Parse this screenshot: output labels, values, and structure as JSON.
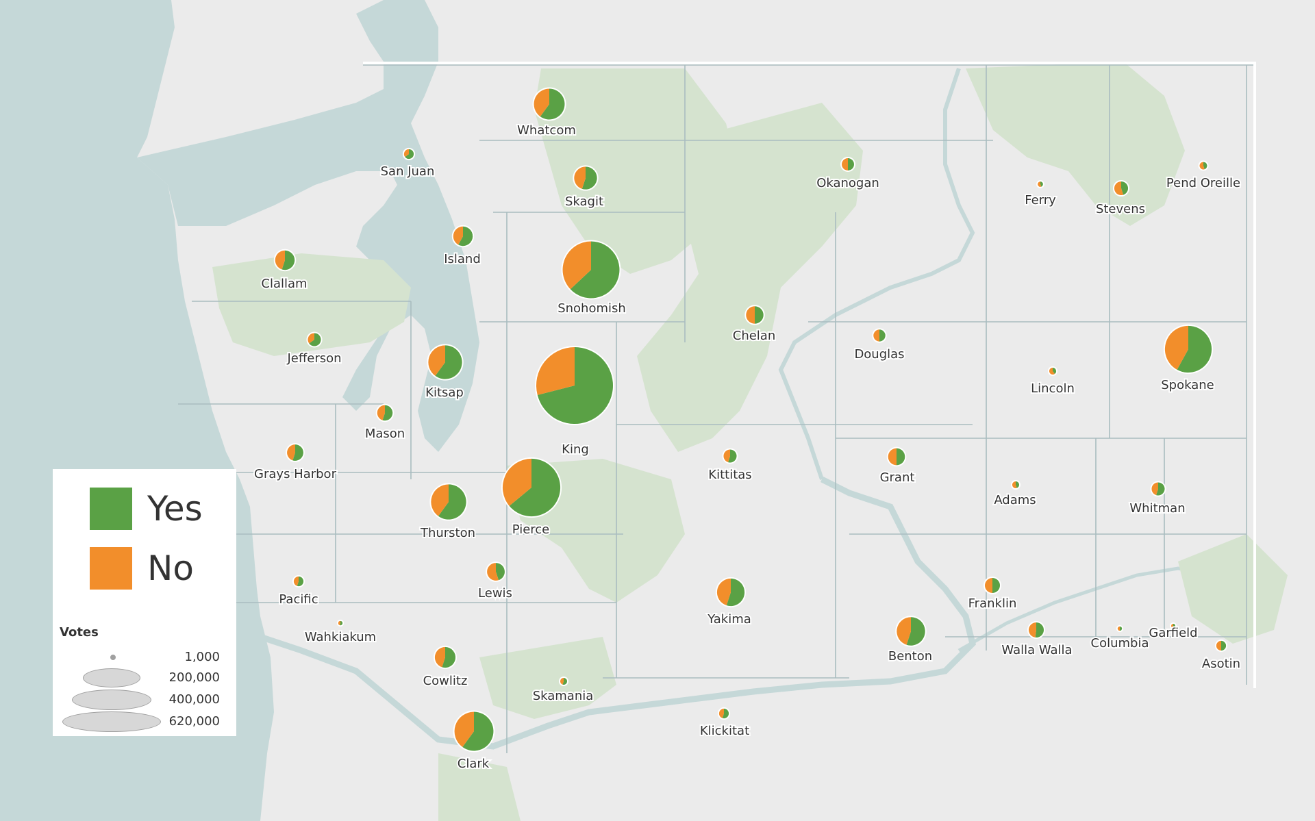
{
  "legend": {
    "series": [
      {
        "name": "Yes",
        "color": "#5aa145"
      },
      {
        "name": "No",
        "color": "#f28e2b"
      }
    ],
    "size_title": "Votes",
    "size_scale": [
      "1,000",
      "200,000",
      "400,000",
      "620,000"
    ]
  },
  "colors": {
    "yes": "#5aa145",
    "no": "#f28e2b",
    "water": "#c5d8d8",
    "land": "#ebebeb",
    "park": "#d5e3cf"
  },
  "chart_data": {
    "type": "map-pie",
    "size_measure": "Votes",
    "series": [
      "Yes",
      "No"
    ],
    "counties": [
      {
        "name": "Whatcom",
        "votes": 100000,
        "yes_share": 0.6
      },
      {
        "name": "San Juan",
        "votes": 10000,
        "yes_share": 0.65
      },
      {
        "name": "Skagit",
        "votes": 55000,
        "yes_share": 0.55
      },
      {
        "name": "Okanogan",
        "votes": 16000,
        "yes_share": 0.5
      },
      {
        "name": "Ferry",
        "votes": 3000,
        "yes_share": 0.45
      },
      {
        "name": "Stevens",
        "votes": 20000,
        "yes_share": 0.45
      },
      {
        "name": "Pend Oreille",
        "votes": 6000,
        "yes_share": 0.45
      },
      {
        "name": "Island",
        "votes": 40000,
        "yes_share": 0.58
      },
      {
        "name": "Clallam",
        "votes": 40000,
        "yes_share": 0.55
      },
      {
        "name": "Snohomish",
        "votes": 340000,
        "yes_share": 0.63
      },
      {
        "name": "Chelan",
        "votes": 32000,
        "yes_share": 0.5
      },
      {
        "name": "Jefferson",
        "votes": 18000,
        "yes_share": 0.65
      },
      {
        "name": "Douglas",
        "votes": 15000,
        "yes_share": 0.5
      },
      {
        "name": "Kitsap",
        "votes": 120000,
        "yes_share": 0.6
      },
      {
        "name": "Lincoln",
        "votes": 5000,
        "yes_share": 0.4
      },
      {
        "name": "Spokane",
        "votes": 230000,
        "yes_share": 0.58
      },
      {
        "name": "Mason",
        "votes": 25000,
        "yes_share": 0.55
      },
      {
        "name": "King",
        "votes": 620000,
        "yes_share": 0.71
      },
      {
        "name": "Grays Harbor",
        "votes": 28000,
        "yes_share": 0.55
      },
      {
        "name": "Kittitas",
        "votes": 18000,
        "yes_share": 0.55
      },
      {
        "name": "Grant",
        "votes": 30000,
        "yes_share": 0.5
      },
      {
        "name": "Adams",
        "votes": 5000,
        "yes_share": 0.45
      },
      {
        "name": "Whitman",
        "votes": 18000,
        "yes_share": 0.55
      },
      {
        "name": "Thurston",
        "votes": 130000,
        "yes_share": 0.6
      },
      {
        "name": "Pierce",
        "votes": 350000,
        "yes_share": 0.64
      },
      {
        "name": "Lewis",
        "votes": 33000,
        "yes_share": 0.45
      },
      {
        "name": "Pacific",
        "votes": 10000,
        "yes_share": 0.55
      },
      {
        "name": "Yakima",
        "votes": 80000,
        "yes_share": 0.55
      },
      {
        "name": "Franklin",
        "votes": 24000,
        "yes_share": 0.5
      },
      {
        "name": "Wahkiakum",
        "votes": 2000,
        "yes_share": 0.55
      },
      {
        "name": "Benton",
        "votes": 85000,
        "yes_share": 0.55
      },
      {
        "name": "Walla Walla",
        "votes": 24000,
        "yes_share": 0.52
      },
      {
        "name": "Columbia",
        "votes": 2000,
        "yes_share": 0.5
      },
      {
        "name": "Garfield",
        "votes": 1200,
        "yes_share": 0.45
      },
      {
        "name": "Asotin",
        "votes": 10000,
        "yes_share": 0.5
      },
      {
        "name": "Cowlitz",
        "votes": 45000,
        "yes_share": 0.55
      },
      {
        "name": "Skamania",
        "votes": 5000,
        "yes_share": 0.55
      },
      {
        "name": "Clark",
        "votes": 160000,
        "yes_share": 0.6
      },
      {
        "name": "Klickitat",
        "votes": 10000,
        "yes_share": 0.55
      }
    ]
  }
}
